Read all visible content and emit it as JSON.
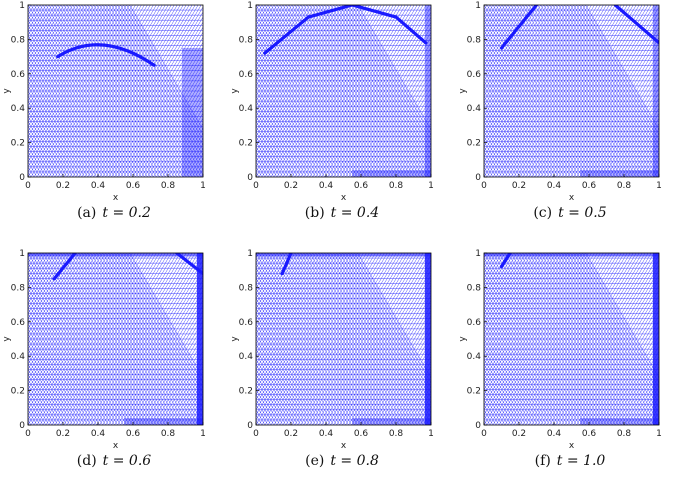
{
  "panels": [
    {
      "label": "(a)",
      "t": "t = 0.2"
    },
    {
      "label": "(b)",
      "t": "t = 0.4"
    },
    {
      "label": "(c)",
      "t": "t = 0.5"
    },
    {
      "label": "(d)",
      "t": "t = 0.6"
    },
    {
      "label": "(e)",
      "t": "t = 0.8"
    },
    {
      "label": "(f)",
      "t": "t = 1.0"
    }
  ],
  "axes": {
    "xlabel": "x",
    "ylabel": "y",
    "xticks": [
      "0",
      "0.2",
      "0.4",
      "0.6",
      "0.8",
      "1"
    ],
    "yticks": [
      "0",
      "0.2",
      "0.4",
      "0.6",
      "0.8",
      "1"
    ]
  },
  "mesh_color": "#1a1aff"
}
